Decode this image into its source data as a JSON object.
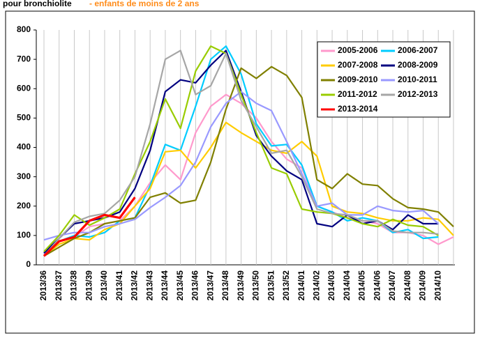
{
  "chart_data": {
    "type": "line",
    "title": "pour bronchiolite",
    "subtitle": "- enfants de moins de 2 ans",
    "categories": [
      "2013/36",
      "2013/37",
      "2013/38",
      "2013/39",
      "2013/40",
      "2013/41",
      "2013/42",
      "2013/43",
      "2013/44",
      "2013/45",
      "2013/46",
      "2013/47",
      "2013/48",
      "2013/49",
      "2013/50",
      "2013/51",
      "2013/52",
      "2014/01",
      "2014/02",
      "2014/03",
      "2014/04",
      "2014/05",
      "2014/06",
      "2014/07",
      "2014/08",
      "2014/09",
      "2014/10",
      null
    ],
    "ylim": [
      0,
      800
    ],
    "yticks": [
      0,
      100,
      200,
      300,
      400,
      500,
      600,
      700,
      800
    ],
    "xgrid": true,
    "series": [
      {
        "name": "2005-2006",
        "color": "#ff99cc",
        "values": [
          35,
          80,
          95,
          130,
          140,
          150,
          200,
          280,
          340,
          290,
          450,
          540,
          580,
          550,
          500,
          420,
          360,
          330,
          200,
          180,
          160,
          150,
          140,
          110,
          110,
          100,
          70,
          95
        ]
      },
      {
        "name": "2006-2007",
        "color": "#00ccff",
        "values": [
          40,
          80,
          100,
          95,
          110,
          150,
          160,
          270,
          410,
          390,
          540,
          700,
          745,
          650,
          480,
          405,
          410,
          340,
          200,
          180,
          150,
          160,
          150,
          110,
          120,
          90,
          95,
          null
        ]
      },
      {
        "name": "2007-2008",
        "color": "#ffcc00",
        "values": [
          30,
          70,
          90,
          85,
          120,
          140,
          200,
          260,
          385,
          390,
          330,
          400,
          485,
          450,
          420,
          390,
          380,
          420,
          370,
          200,
          180,
          175,
          160,
          150,
          150,
          160,
          155,
          100
        ]
      },
      {
        "name": "2008-2009",
        "color": "#000080",
        "values": [
          40,
          90,
          140,
          150,
          160,
          180,
          260,
          390,
          590,
          630,
          620,
          680,
          730,
          590,
          440,
          370,
          320,
          290,
          140,
          130,
          170,
          140,
          150,
          120,
          170,
          140,
          140,
          null
        ]
      },
      {
        "name": "2009-2010",
        "color": "#808000",
        "values": [
          30,
          60,
          90,
          110,
          140,
          150,
          160,
          230,
          245,
          210,
          220,
          350,
          530,
          670,
          635,
          675,
          645,
          570,
          290,
          260,
          310,
          275,
          270,
          225,
          195,
          190,
          180,
          130
        ]
      },
      {
        "name": "2010-2011",
        "color": "#9999ff",
        "values": [
          85,
          100,
          110,
          110,
          130,
          140,
          155,
          195,
          230,
          270,
          350,
          470,
          550,
          590,
          550,
          525,
          420,
          310,
          200,
          210,
          170,
          170,
          200,
          185,
          180,
          185,
          140,
          null
        ]
      },
      {
        "name": "2011-2012",
        "color": "#99cc00",
        "values": [
          45,
          100,
          170,
          135,
          160,
          190,
          310,
          420,
          565,
          465,
          660,
          745,
          720,
          580,
          450,
          330,
          310,
          190,
          180,
          175,
          160,
          140,
          130,
          155,
          135,
          130,
          100,
          null
        ]
      },
      {
        "name": "2012-2013",
        "color": "#a6a6a6",
        "values": [
          30,
          90,
          145,
          165,
          175,
          220,
          300,
          480,
          700,
          730,
          580,
          610,
          720,
          560,
          470,
          380,
          390,
          300,
          190,
          175,
          170,
          150,
          150,
          115,
          110,
          110,
          105,
          null
        ]
      },
      {
        "name": "2013-2014",
        "color": "#ff0000",
        "values": [
          30,
          80,
          95,
          150,
          170,
          160,
          230,
          null,
          null,
          null,
          null,
          null,
          null,
          null,
          null,
          null,
          null,
          null,
          null,
          null,
          null,
          null,
          null,
          null,
          null,
          null,
          null,
          null
        ]
      }
    ]
  }
}
